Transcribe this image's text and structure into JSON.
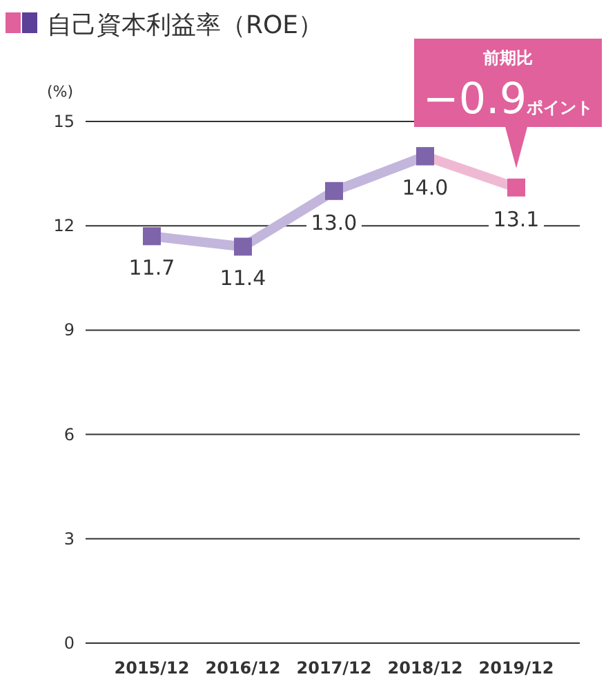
{
  "chart_data": {
    "type": "line",
    "title": "自己資本利益率（ROE）",
    "ylabel": "(%)",
    "categories": [
      "2015/12",
      "2016/12",
      "2017/12",
      "2018/12",
      "2019/12"
    ],
    "series": [
      {
        "color": "#c3b6dc",
        "colors": [
          "#7e64ab",
          "#7e64ab",
          "#7e64ab",
          "#7e64ab",
          null
        ],
        "values": [
          11.7,
          11.4,
          13.0,
          14.0,
          null
        ],
        "value_labels": [
          "11.7",
          "11.4",
          "13.0",
          "14.0",
          null
        ]
      },
      {
        "color": "#f0b9d3",
        "colors": [
          null,
          null,
          null,
          "#7e64ab",
          "#e0619c"
        ],
        "values": [
          null,
          null,
          null,
          14.0,
          13.1
        ],
        "value_labels": [
          null,
          null,
          null,
          null,
          "13.1"
        ]
      }
    ],
    "ylim": [
      0,
      15
    ],
    "yticks": [
      0,
      3,
      6,
      9,
      12,
      15
    ],
    "grid": "y",
    "marker": "square",
    "annotations": [
      "前期比",
      "−0.9ポイント"
    ]
  }
}
